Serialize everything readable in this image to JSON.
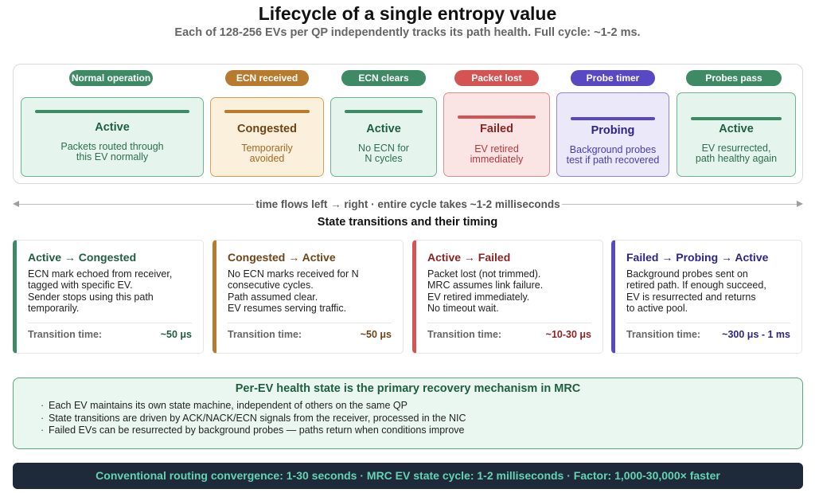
{
  "header": {
    "title": "Lifecycle of a single entropy value",
    "subtitle": "Each of 128-256 EVs per QP independently tracks its path health. Full cycle: ~1-2 ms."
  },
  "lifecycle": {
    "events": [
      {
        "label": "Normal operation",
        "color": "#3d8a64"
      },
      {
        "label": "ECN received",
        "color": "#b87a2e"
      },
      {
        "label": "ECN clears",
        "color": "#3d8a64"
      },
      {
        "label": "Packet lost",
        "color": "#d45454"
      },
      {
        "label": "Probe timer",
        "color": "#5848c4"
      },
      {
        "label": "Probes pass",
        "color": "#3d8a64"
      }
    ],
    "states": [
      {
        "name": "Active",
        "desc": "Packets routed through\nthis EV normally"
      },
      {
        "name": "Congested",
        "desc": "Temporarily\navoided"
      },
      {
        "name": "Active",
        "desc": "No ECN for\nN cycles"
      },
      {
        "name": "Failed",
        "desc": "EV retired\nimmediately"
      },
      {
        "name": "Probing",
        "desc": "Background probes\ntest if path recovered"
      },
      {
        "name": "Active",
        "desc": "EV resurrected,\npath healthy again"
      }
    ]
  },
  "timeline": {
    "label": "time flows left → right · entire cycle takes ~1-2 milliseconds"
  },
  "transitions": {
    "title": "State transitions and their timing",
    "time_label": "Transition time:",
    "cards": [
      {
        "title": "Active → Congested",
        "desc": "ECN mark echoed from receiver,\ntagged with specific EV.\nSender stops using this path\ntemporarily.",
        "time": "~50 μs",
        "color": "#3d8a64"
      },
      {
        "title": "Congested → Active",
        "desc": "No ECN marks received for N\nconsecutive cycles.\nPath assumed clear.\nEV resumes serving traffic.",
        "time": "~50 μs",
        "color": "#b87a2e"
      },
      {
        "title": "Active → Failed",
        "desc": "Packet lost (not trimmed).\nMRC assumes link failure.\nEV retired immediately.\nNo timeout wait.",
        "time": "~10-30 μs",
        "color": "#d45454"
      },
      {
        "title": "Failed → Probing → Active",
        "desc": "Background probes sent on\nretired path. If enough succeed,\nEV is resurrected and returns\nto active pool.",
        "time": "~300 μs - 1 ms",
        "color": "#5848c4"
      }
    ]
  },
  "mechanism": {
    "title": "Per-EV health state is the primary recovery mechanism in MRC",
    "bullet": "·",
    "items": [
      "Each EV maintains its own state machine, independent of others on the same QP",
      "State transitions are driven by ACK/NACK/ECN signals from the receiver, processed in the NIC",
      "Failed EVs can be resurrected by background probes — paths return when conditions improve"
    ]
  },
  "footer": {
    "text": "Conventional routing convergence: 1-30 seconds · MRC EV state cycle: 1-2 milliseconds · Factor: 1,000-30,000× faster"
  }
}
